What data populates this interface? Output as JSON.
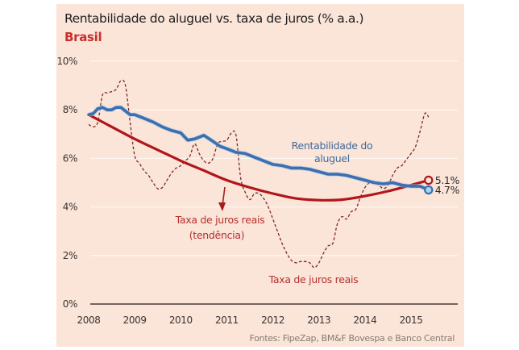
{
  "chart_data": {
    "type": "line",
    "title": "Rentabilidade do aluguel vs. taxa de juros (% a.a.)",
    "subtitle": "Brasil",
    "source": "Fontes: FipeZap, BM&F Bovespa e Banco Central",
    "xlabel": "",
    "ylabel": "",
    "xlim": [
      2008,
      2015.45
    ],
    "ylim": [
      0,
      10
    ],
    "grid": true,
    "x_ticks": [
      2008,
      2009,
      2010,
      2011,
      2012,
      2013,
      2014,
      2015
    ],
    "x_tick_labels": [
      "2008",
      "2009",
      "2010",
      "2011",
      "2012",
      "2013",
      "2014",
      "2015"
    ],
    "y_ticks": [
      0,
      2,
      4,
      6,
      8,
      10
    ],
    "y_tick_labels": [
      "0%",
      "2%",
      "4%",
      "6%",
      "8%",
      "10%"
    ],
    "series": [
      {
        "name": "Rentabilidade do aluguel",
        "label_lines": [
          "Rentabilidade do",
          "aluguel"
        ],
        "color": "#3b6fb0",
        "style": "solid-thick",
        "x": [
          2008.0,
          2008.1,
          2008.2,
          2008.3,
          2008.4,
          2008.5,
          2008.6,
          2008.7,
          2008.8,
          2008.9,
          2009.0,
          2009.2,
          2009.4,
          2009.6,
          2009.8,
          2010.0,
          2010.15,
          2010.3,
          2010.5,
          2010.7,
          2010.85,
          2011.0,
          2011.2,
          2011.4,
          2011.6,
          2011.8,
          2012.0,
          2012.2,
          2012.4,
          2012.6,
          2012.8,
          2013.0,
          2013.2,
          2013.4,
          2013.6,
          2013.8,
          2014.0,
          2014.2,
          2014.4,
          2014.6,
          2014.8,
          2015.0,
          2015.2,
          2015.38
        ],
        "values": [
          7.8,
          7.85,
          8.05,
          8.1,
          8.0,
          8.0,
          8.1,
          8.1,
          7.95,
          7.8,
          7.8,
          7.65,
          7.5,
          7.3,
          7.15,
          7.05,
          6.75,
          6.8,
          6.95,
          6.7,
          6.5,
          6.4,
          6.25,
          6.2,
          6.05,
          5.9,
          5.75,
          5.7,
          5.6,
          5.6,
          5.55,
          5.45,
          5.35,
          5.35,
          5.3,
          5.2,
          5.1,
          5.0,
          4.95,
          5.0,
          4.9,
          4.85,
          4.85,
          4.7
        ],
        "end_label": "4.7%"
      },
      {
        "name": "Taxa de juros reais (tendência)",
        "label_lines": [
          "Taxa de juros reais",
          "(tendência)"
        ],
        "color": "#b0161b",
        "style": "solid-thick",
        "x": [
          2008.0,
          2008.5,
          2009.0,
          2009.5,
          2010.0,
          2010.5,
          2011.0,
          2011.5,
          2012.0,
          2012.5,
          2013.0,
          2013.5,
          2014.0,
          2014.5,
          2015.0,
          2015.38
        ],
        "values": [
          7.8,
          7.3,
          6.8,
          6.35,
          5.9,
          5.5,
          5.1,
          4.8,
          4.55,
          4.35,
          4.28,
          4.3,
          4.45,
          4.65,
          4.9,
          5.1
        ],
        "end_label": "5.1%"
      },
      {
        "name": "Taxa de juros reais",
        "label_lines": [
          "Taxa de juros reais"
        ],
        "color": "#7a2a2a",
        "style": "dashed",
        "x": [
          2008.0,
          2008.1,
          2008.2,
          2008.3,
          2008.4,
          2008.5,
          2008.6,
          2008.7,
          2008.8,
          2008.9,
          2009.0,
          2009.1,
          2009.2,
          2009.3,
          2009.4,
          2009.5,
          2009.6,
          2009.7,
          2009.8,
          2009.9,
          2010.0,
          2010.1,
          2010.2,
          2010.3,
          2010.4,
          2010.5,
          2010.6,
          2010.7,
          2010.8,
          2010.9,
          2011.0,
          2011.1,
          2011.2,
          2011.3,
          2011.4,
          2011.5,
          2011.6,
          2011.7,
          2011.8,
          2011.9,
          2012.0,
          2012.1,
          2012.2,
          2012.3,
          2012.4,
          2012.5,
          2012.6,
          2012.7,
          2012.8,
          2012.9,
          2013.0,
          2013.1,
          2013.2,
          2013.3,
          2013.4,
          2013.5,
          2013.6,
          2013.7,
          2013.8,
          2013.9,
          2014.0,
          2014.1,
          2014.2,
          2014.3,
          2014.4,
          2014.5,
          2014.6,
          2014.7,
          2014.8,
          2014.9,
          2015.0,
          2015.1,
          2015.2,
          2015.3,
          2015.38
        ],
        "values": [
          7.4,
          7.3,
          7.5,
          8.6,
          8.7,
          8.75,
          8.85,
          9.2,
          9.0,
          7.5,
          6.1,
          5.8,
          5.5,
          5.3,
          5.0,
          4.75,
          4.8,
          5.1,
          5.4,
          5.6,
          5.7,
          5.9,
          6.1,
          6.6,
          6.2,
          5.9,
          5.8,
          6.0,
          6.6,
          6.7,
          6.75,
          7.05,
          6.95,
          5.2,
          4.6,
          4.3,
          4.55,
          4.55,
          4.35,
          4.0,
          3.5,
          3.0,
          2.5,
          2.1,
          1.8,
          1.7,
          1.75,
          1.75,
          1.7,
          1.5,
          1.7,
          2.1,
          2.4,
          2.5,
          3.3,
          3.6,
          3.5,
          3.8,
          3.9,
          4.4,
          4.8,
          5.0,
          5.0,
          4.9,
          4.75,
          4.9,
          5.3,
          5.6,
          5.7,
          5.95,
          6.2,
          6.5,
          7.15,
          7.85,
          7.7
        ],
        "end_label": null
      }
    ]
  }
}
